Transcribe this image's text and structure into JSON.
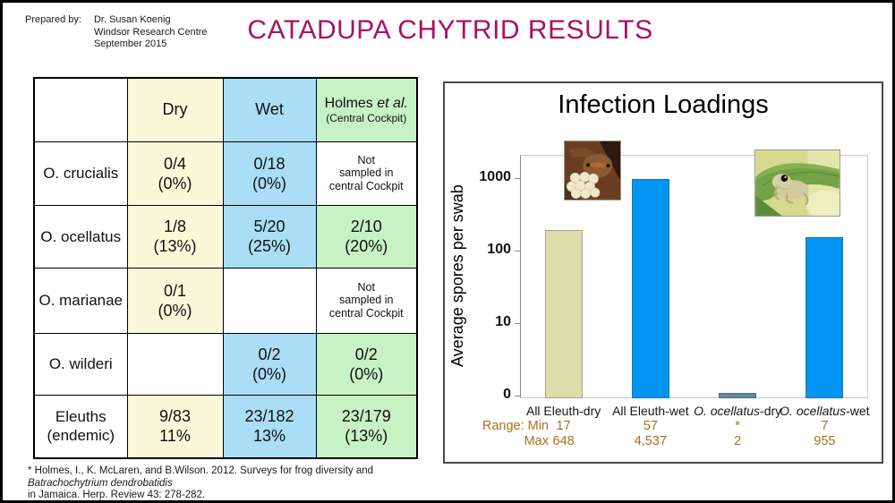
{
  "slide": {
    "prepared_by_label": "Prepared by:",
    "prepared_by_lines": [
      "Dr. Susan Koenig",
      "Windsor Research Centre",
      "September 2015"
    ],
    "title": "CATADUPA CHYTRID RESULTS",
    "title_color": "#A81262"
  },
  "table": {
    "header": {
      "c0": "",
      "c1": "Dry",
      "c2": "Wet",
      "c3_pre": "Holmes ",
      "c3_italic": "et al.",
      "c3_sub": "(Central Cockpit)"
    },
    "header_bgs": [
      "white",
      "cream",
      "blue",
      "green"
    ],
    "rows": [
      {
        "cells": [
          {
            "lines": [
              "O. crucialis"
            ],
            "bg": "white",
            "kind": "species"
          },
          {
            "lines": [
              "0/4",
              "(0%)"
            ],
            "bg": "cream",
            "kind": "value"
          },
          {
            "lines": [
              "0/18",
              "(0%)"
            ],
            "bg": "blue",
            "kind": "value"
          },
          {
            "lines": [
              "Not",
              "sampled in",
              "central Cockpit"
            ],
            "bg": "white",
            "kind": "note"
          }
        ]
      },
      {
        "cells": [
          {
            "lines": [
              "O. ocellatus"
            ],
            "bg": "white",
            "kind": "species"
          },
          {
            "lines": [
              "1/8",
              "(13%)"
            ],
            "bg": "cream",
            "kind": "value"
          },
          {
            "lines": [
              "5/20",
              "(25%)"
            ],
            "bg": "blue",
            "kind": "value"
          },
          {
            "lines": [
              "2/10",
              "(20%)"
            ],
            "bg": "green",
            "kind": "value"
          }
        ]
      },
      {
        "cells": [
          {
            "lines": [
              "O. marianae"
            ],
            "bg": "white",
            "kind": "species"
          },
          {
            "lines": [
              "0/1",
              "(0%)"
            ],
            "bg": "cream",
            "kind": "value"
          },
          {
            "lines": [],
            "bg": "white",
            "kind": "empty"
          },
          {
            "lines": [
              "Not",
              "sampled in",
              "central Cockpit"
            ],
            "bg": "white",
            "kind": "note"
          }
        ]
      },
      {
        "cells": [
          {
            "lines": [
              "O. wilderi"
            ],
            "bg": "white",
            "kind": "species"
          },
          {
            "lines": [],
            "bg": "white",
            "kind": "empty"
          },
          {
            "lines": [
              "0/2",
              "(0%)"
            ],
            "bg": "blue",
            "kind": "value"
          },
          {
            "lines": [
              "0/2",
              "(0%)"
            ],
            "bg": "green",
            "kind": "value"
          }
        ]
      },
      {
        "cells": [
          {
            "lines": [
              "Eleuths",
              "(endemic)"
            ],
            "bg": "white",
            "kind": "species"
          },
          {
            "lines": [
              "9/83",
              "11%"
            ],
            "bg": "cream",
            "kind": "value"
          },
          {
            "lines": [
              "23/182",
              "13%"
            ],
            "bg": "blue",
            "kind": "value"
          },
          {
            "lines": [
              "23/179",
              "(13%)"
            ],
            "bg": "green",
            "kind": "value"
          }
        ]
      }
    ]
  },
  "footnote": {
    "line1_pre": "* Holmes, I., K. McLaren, and B.Wilson.  2012.  Surveys for frog diversity and ",
    "line1_italic": "Batrachochytrium dendrobatidis",
    "line2": "in Jamaica.  Herp. Review 43: 278-282."
  },
  "chart_data": {
    "type": "bar",
    "title": "Infection Loadings",
    "ylabel": "Average  spores per swab",
    "yscale": "log",
    "ylim_effective": [
      1,
      2000
    ],
    "yticks": [
      "1000",
      "100",
      "10",
      "0"
    ],
    "grid": false,
    "categories": [
      {
        "italic": "",
        "rest": "All Eleuth-dry"
      },
      {
        "italic": "",
        "rest": "All Eleuth-wet"
      },
      {
        "italic": "O. ocellatus",
        "rest": "-dry"
      },
      {
        "italic": "O. ocellatus",
        "rest": "-wet"
      }
    ],
    "values": [
      190,
      980,
      1.1,
      155
    ],
    "values_note": "bar heights estimated from log axis",
    "bar_colors": [
      "#DCDCAC",
      "#0095F2",
      "#61889E",
      "#0095F2"
    ],
    "range": {
      "row1_label": "Range:  Min",
      "row2_label": "Max",
      "min": [
        "17",
        "57",
        "*",
        "7"
      ],
      "max": [
        "648",
        "4,537",
        "2",
        "955"
      ],
      "color": "#A9711F"
    },
    "images": [
      "frog-with-eggs-photo",
      "frog-on-leaf-photo"
    ]
  }
}
